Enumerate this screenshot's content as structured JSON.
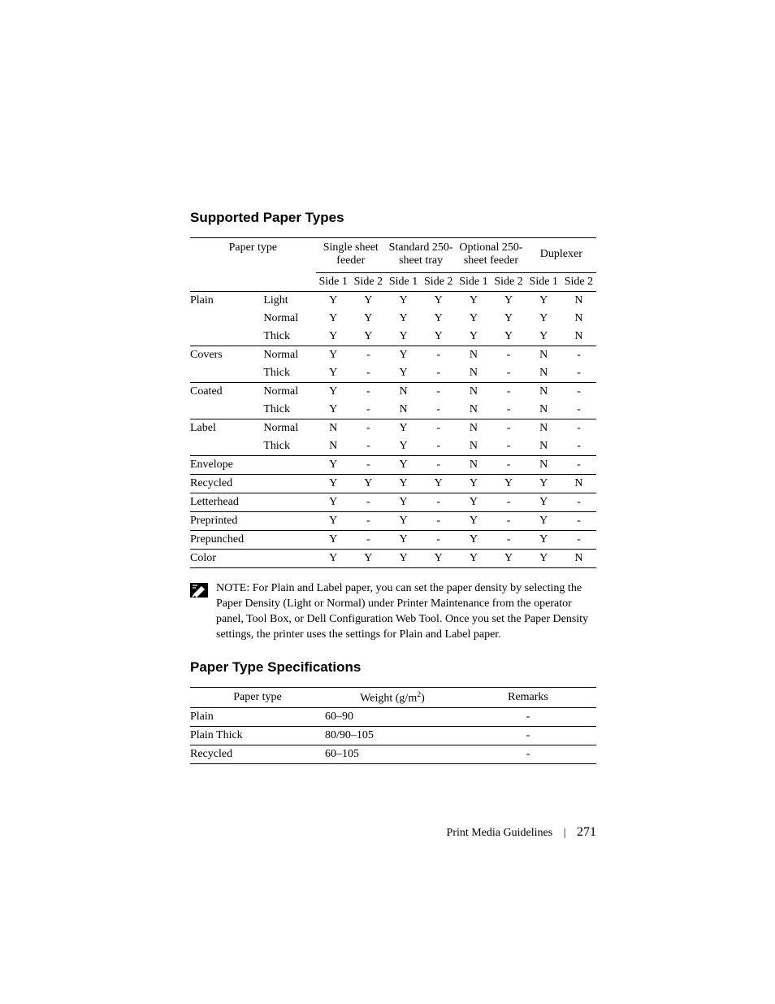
{
  "headings": {
    "supported": "Supported Paper Types",
    "specs": "Paper Type Specifications"
  },
  "table1": {
    "head_paper_type": "Paper type",
    "groups": [
      "Single sheet feeder",
      "Standard 250-sheet tray",
      "Optional 250-sheet feeder",
      "Duplexer"
    ],
    "side_labels": [
      "Side 1",
      "Side 2",
      "Side 1",
      "Side 2",
      "Side 1",
      "Side 2",
      "Side 1",
      "Side 2"
    ],
    "rows": [
      {
        "type": "Plain",
        "sub": "Light",
        "cells": [
          "Y",
          "Y",
          "Y",
          "Y",
          "Y",
          "Y",
          "Y",
          "N"
        ],
        "group_top": true
      },
      {
        "type": "",
        "sub": "Normal",
        "cells": [
          "Y",
          "Y",
          "Y",
          "Y",
          "Y",
          "Y",
          "Y",
          "N"
        ]
      },
      {
        "type": "",
        "sub": "Thick",
        "cells": [
          "Y",
          "Y",
          "Y",
          "Y",
          "Y",
          "Y",
          "Y",
          "N"
        ]
      },
      {
        "type": "Covers",
        "sub": "Normal",
        "cells": [
          "Y",
          "-",
          "Y",
          "-",
          "N",
          "-",
          "N",
          "-"
        ],
        "group_top": true
      },
      {
        "type": "",
        "sub": "Thick",
        "cells": [
          "Y",
          "-",
          "Y",
          "-",
          "N",
          "-",
          "N",
          "-"
        ]
      },
      {
        "type": "Coated",
        "sub": "Normal",
        "cells": [
          "Y",
          "-",
          "N",
          "-",
          "N",
          "-",
          "N",
          "-"
        ],
        "group_top": true
      },
      {
        "type": "",
        "sub": "Thick",
        "cells": [
          "Y",
          "-",
          "N",
          "-",
          "N",
          "-",
          "N",
          "-"
        ]
      },
      {
        "type": "Label",
        "sub": "Normal",
        "cells": [
          "N",
          "-",
          "Y",
          "-",
          "N",
          "-",
          "N",
          "-"
        ],
        "group_top": true
      },
      {
        "type": "",
        "sub": "Thick",
        "cells": [
          "N",
          "-",
          "Y",
          "-",
          "N",
          "-",
          "N",
          "-"
        ]
      },
      {
        "type": "Envelope",
        "sub": "",
        "cells": [
          "Y",
          "-",
          "Y",
          "-",
          "N",
          "-",
          "N",
          "-"
        ],
        "group_top": true
      },
      {
        "type": "Recycled",
        "sub": "",
        "cells": [
          "Y",
          "Y",
          "Y",
          "Y",
          "Y",
          "Y",
          "Y",
          "N"
        ],
        "group_top": true
      },
      {
        "type": "Letterhead",
        "sub": "",
        "cells": [
          "Y",
          "-",
          "Y",
          "-",
          "Y",
          "-",
          "Y",
          "-"
        ],
        "group_top": true
      },
      {
        "type": "Preprinted",
        "sub": "",
        "cells": [
          "Y",
          "-",
          "Y",
          "-",
          "Y",
          "-",
          "Y",
          "-"
        ],
        "group_top": true
      },
      {
        "type": "Prepunched",
        "sub": "",
        "cells": [
          "Y",
          "-",
          "Y",
          "-",
          "Y",
          "-",
          "Y",
          "-"
        ],
        "group_top": true
      },
      {
        "type": "Color",
        "sub": "",
        "cells": [
          "Y",
          "Y",
          "Y",
          "Y",
          "Y",
          "Y",
          "Y",
          "N"
        ],
        "group_top": true,
        "last": true
      }
    ]
  },
  "note": {
    "label": "NOTE:",
    "text": " For Plain and Label paper, you can set the paper density by selecting the Paper Density (Light or Normal) under Printer Maintenance from the operator panel, Tool Box, or Dell Configuration Web Tool. Once you set the Paper Density settings, the printer uses the settings for Plain and Label paper."
  },
  "table2": {
    "head_type": "Paper type",
    "head_weight_prefix": "Weight (g/m",
    "head_weight_sup": "2",
    "head_weight_suffix": ")",
    "head_remarks": "Remarks",
    "rows": [
      {
        "type": "Plain",
        "weight": "60–90",
        "remarks": "-"
      },
      {
        "type": "Plain Thick",
        "weight": "80/90–105",
        "remarks": "-"
      },
      {
        "type": "Recycled",
        "weight": "60–105",
        "remarks": "-"
      }
    ]
  },
  "footer": {
    "section": "Print Media Guidelines",
    "page": "271"
  }
}
